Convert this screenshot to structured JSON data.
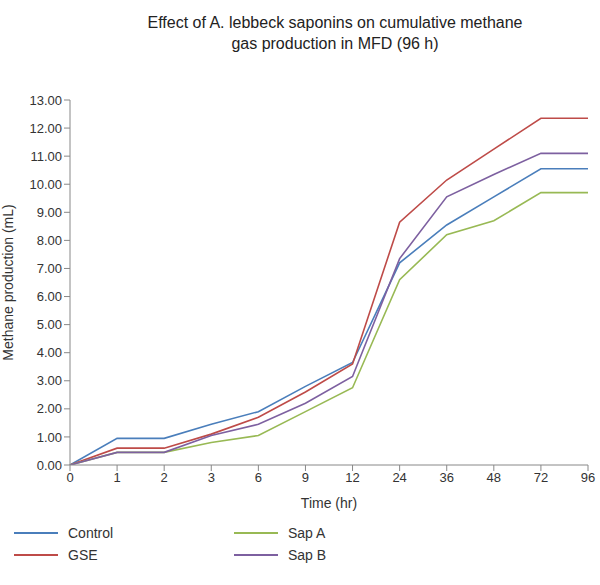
{
  "chart_data": {
    "type": "line",
    "title": "Effect of A. lebbeck saponins on cumulative methane gas production in MFD (96 h)",
    "x_label": "Time (hr)",
    "y_label": "Methane production (mL)",
    "categories": [
      "0",
      "1",
      "2",
      "3",
      "6",
      "9",
      "12",
      "24",
      "36",
      "48",
      "72",
      "96"
    ],
    "series": [
      {
        "name": "Control",
        "color": "#4a7ebb",
        "values": [
          0,
          0.95,
          0.95,
          1.45,
          1.9,
          2.8,
          3.65,
          7.2,
          8.55,
          9.55,
          10.55,
          10.55
        ]
      },
      {
        "name": "GSE",
        "color": "#be4b48",
        "values": [
          0,
          0.6,
          0.6,
          1.1,
          1.7,
          2.6,
          3.6,
          8.65,
          10.15,
          11.25,
          12.35,
          12.35
        ]
      },
      {
        "name": "Sap A",
        "color": "#98b954",
        "values": [
          0,
          0.45,
          0.45,
          0.8,
          1.05,
          1.9,
          2.75,
          6.6,
          8.2,
          8.7,
          9.7,
          9.7
        ]
      },
      {
        "name": "Sap B",
        "color": "#7d60a0",
        "values": [
          0,
          0.45,
          0.45,
          1.05,
          1.45,
          2.2,
          3.15,
          7.35,
          9.55,
          10.35,
          11.1,
          11.1
        ]
      }
    ],
    "ylim": [
      0,
      13
    ],
    "yticks": [
      {
        "value": 0,
        "label": "0.00"
      },
      {
        "value": 1,
        "label": "1.00"
      },
      {
        "value": 2,
        "label": "2.00"
      },
      {
        "value": 3,
        "label": "3.00"
      },
      {
        "value": 4,
        "label": "4.00"
      },
      {
        "value": 5,
        "label": "5.00"
      },
      {
        "value": 6,
        "label": "6.00"
      },
      {
        "value": 7,
        "label": "7.00"
      },
      {
        "value": 8,
        "label": "8.00"
      },
      {
        "value": 9,
        "label": "9.00"
      },
      {
        "value": 10,
        "label": "10.00"
      },
      {
        "value": 11,
        "label": "11.00"
      },
      {
        "value": 12,
        "label": "12.00"
      },
      {
        "value": 13,
        "label": "13.00"
      }
    ],
    "grid": false,
    "legend": "bottom"
  }
}
